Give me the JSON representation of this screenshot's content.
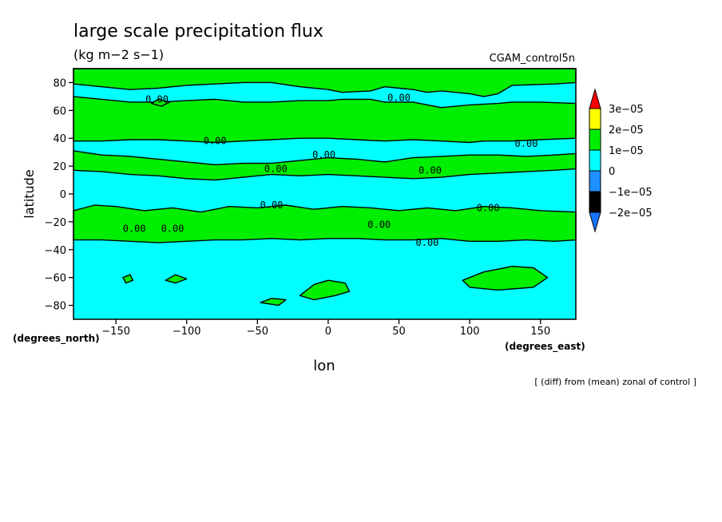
{
  "chart_data": {
    "type": "contour",
    "title": "large scale precipitation flux",
    "units": "(kg m−2 s−1)",
    "dataset": "CGAM_control5n",
    "xlabel": "lon",
    "ylabel": "latitude",
    "x_units": "(degrees_east)",
    "y_units": "(degrees_north)",
    "xlim": [
      -180,
      175
    ],
    "ylim": [
      -90,
      90
    ],
    "x_ticks": [
      {
        "v": -150,
        "label": "−150"
      },
      {
        "v": -100,
        "label": "−100"
      },
      {
        "v": -50,
        "label": "−50"
      },
      {
        "v": 0,
        "label": "0"
      },
      {
        "v": 50,
        "label": "50"
      },
      {
        "v": 100,
        "label": "100"
      },
      {
        "v": 150,
        "label": "150"
      }
    ],
    "y_ticks": [
      {
        "v": 80,
        "label": "80"
      },
      {
        "v": 60,
        "label": "60"
      },
      {
        "v": 40,
        "label": "40"
      },
      {
        "v": 20,
        "label": "20"
      },
      {
        "v": 0,
        "label": "0"
      },
      {
        "v": -20,
        "label": "−20"
      },
      {
        "v": -40,
        "label": "−40"
      },
      {
        "v": -60,
        "label": "−60"
      },
      {
        "v": -80,
        "label": "−80"
      }
    ],
    "colorbar": [
      {
        "label": "3e−05",
        "color": "#ff9900"
      },
      {
        "label": "2e−05",
        "color": "#ffff00"
      },
      {
        "label": "1e−05",
        "color": "#00ee00"
      },
      {
        "label": "0",
        "color": "#00ffff"
      },
      {
        "label": "−1e−05",
        "color": "#1e90ff"
      },
      {
        "label": "−2e−05",
        "color": ""
      }
    ],
    "colorbar_over_color": "#ff0000",
    "colorbar_under_color": "#1874ff",
    "background_color": "#00ffff",
    "positive_color": "#00ee00",
    "contour_labels": [
      {
        "lon": -121,
        "lat": 68,
        "label": "0.00"
      },
      {
        "lon": 50,
        "lat": 69,
        "label": "0.00"
      },
      {
        "lon": -80,
        "lat": 38,
        "label": "0.00"
      },
      {
        "lon": -3,
        "lat": 28,
        "label": "0.00"
      },
      {
        "lon": 140,
        "lat": 36,
        "label": "0.00"
      },
      {
        "lon": -37,
        "lat": 18,
        "label": "0.00"
      },
      {
        "lon": 72,
        "lat": 17,
        "label": "0.00"
      },
      {
        "lon": -40,
        "lat": -8,
        "label": "0.00"
      },
      {
        "lon": 113,
        "lat": -10,
        "label": "0.00"
      },
      {
        "lon": 36,
        "lat": -22,
        "label": "0.00"
      },
      {
        "lon": -137,
        "lat": -25,
        "label": "0.00"
      },
      {
        "lon": -110,
        "lat": -25,
        "label": "0.00"
      },
      {
        "lon": 70,
        "lat": -35,
        "label": "0.00"
      }
    ],
    "regions": [
      [
        [
          -180,
          90
        ],
        [
          175,
          90
        ],
        [
          175,
          80
        ],
        [
          160,
          79
        ],
        [
          130,
          78
        ],
        [
          120,
          72
        ],
        [
          110,
          70
        ],
        [
          100,
          72
        ],
        [
          80,
          74
        ],
        [
          70,
          73
        ],
        [
          60,
          75
        ],
        [
          40,
          77
        ],
        [
          30,
          74
        ],
        [
          10,
          73
        ],
        [
          0,
          75
        ],
        [
          -20,
          77
        ],
        [
          -40,
          80
        ],
        [
          -60,
          80
        ],
        [
          -80,
          79
        ],
        [
          -100,
          78
        ],
        [
          -120,
          76
        ],
        [
          -140,
          75
        ],
        [
          -160,
          77
        ],
        [
          -180,
          79
        ]
      ],
      [
        [
          -180,
          70
        ],
        [
          -160,
          68
        ],
        [
          -140,
          66
        ],
        [
          -120,
          66
        ],
        [
          -100,
          67
        ],
        [
          -80,
          68
        ],
        [
          -60,
          66
        ],
        [
          -40,
          66
        ],
        [
          -20,
          67
        ],
        [
          0,
          67
        ],
        [
          10,
          68
        ],
        [
          30,
          68
        ],
        [
          40,
          66
        ],
        [
          60,
          66
        ],
        [
          70,
          64
        ],
        [
          80,
          62
        ],
        [
          100,
          64
        ],
        [
          120,
          65
        ],
        [
          130,
          66
        ],
        [
          150,
          66
        ],
        [
          175,
          65
        ],
        [
          175,
          40
        ],
        [
          150,
          39
        ],
        [
          130,
          38
        ],
        [
          110,
          38
        ],
        [
          100,
          37
        ],
        [
          80,
          38
        ],
        [
          60,
          39
        ],
        [
          40,
          38
        ],
        [
          20,
          39
        ],
        [
          0,
          40
        ],
        [
          -20,
          40
        ],
        [
          -40,
          39
        ],
        [
          -60,
          38
        ],
        [
          -80,
          37
        ],
        [
          -100,
          38
        ],
        [
          -120,
          39
        ],
        [
          -140,
          39
        ],
        [
          -160,
          38
        ],
        [
          -180,
          38
        ]
      ],
      [
        [
          -180,
          31
        ],
        [
          -160,
          28
        ],
        [
          -140,
          27
        ],
        [
          -120,
          25
        ],
        [
          -100,
          23
        ],
        [
          -80,
          21
        ],
        [
          -60,
          22
        ],
        [
          -40,
          22
        ],
        [
          -20,
          24
        ],
        [
          0,
          26
        ],
        [
          20,
          25
        ],
        [
          40,
          23
        ],
        [
          60,
          26
        ],
        [
          80,
          27
        ],
        [
          100,
          28
        ],
        [
          120,
          28
        ],
        [
          140,
          27
        ],
        [
          160,
          28
        ],
        [
          175,
          29
        ],
        [
          175,
          18
        ],
        [
          160,
          17
        ],
        [
          140,
          16
        ],
        [
          120,
          15
        ],
        [
          100,
          14
        ],
        [
          80,
          12
        ],
        [
          60,
          11
        ],
        [
          40,
          12
        ],
        [
          20,
          13
        ],
        [
          0,
          14
        ],
        [
          -20,
          13
        ],
        [
          -40,
          14
        ],
        [
          -60,
          12
        ],
        [
          -80,
          10
        ],
        [
          -100,
          11
        ],
        [
          -120,
          13
        ],
        [
          -140,
          14
        ],
        [
          -160,
          16
        ],
        [
          -180,
          17
        ]
      ],
      [
        [
          -180,
          -12
        ],
        [
          -165,
          -8
        ],
        [
          -150,
          -9
        ],
        [
          -130,
          -12
        ],
        [
          -110,
          -10
        ],
        [
          -90,
          -13
        ],
        [
          -70,
          -9
        ],
        [
          -50,
          -10
        ],
        [
          -30,
          -8
        ],
        [
          -10,
          -11
        ],
        [
          10,
          -9
        ],
        [
          30,
          -10
        ],
        [
          50,
          -12
        ],
        [
          70,
          -10
        ],
        [
          90,
          -12
        ],
        [
          110,
          -9
        ],
        [
          130,
          -10
        ],
        [
          150,
          -12
        ],
        [
          175,
          -13
        ],
        [
          175,
          -33
        ],
        [
          160,
          -34
        ],
        [
          140,
          -33
        ],
        [
          120,
          -34
        ],
        [
          100,
          -34
        ],
        [
          80,
          -32
        ],
        [
          60,
          -33
        ],
        [
          40,
          -33
        ],
        [
          20,
          -32
        ],
        [
          0,
          -32
        ],
        [
          -20,
          -33
        ],
        [
          -40,
          -32
        ],
        [
          -60,
          -33
        ],
        [
          -80,
          -33
        ],
        [
          -100,
          -34
        ],
        [
          -120,
          -35
        ],
        [
          -140,
          -34
        ],
        [
          -160,
          -33
        ],
        [
          -180,
          -33
        ]
      ],
      [
        [
          95,
          -62
        ],
        [
          110,
          -56
        ],
        [
          130,
          -52
        ],
        [
          145,
          -53
        ],
        [
          155,
          -60
        ],
        [
          145,
          -67
        ],
        [
          120,
          -69
        ],
        [
          100,
          -67
        ]
      ],
      [
        [
          -20,
          -73
        ],
        [
          -10,
          -65
        ],
        [
          0,
          -62
        ],
        [
          12,
          -64
        ],
        [
          15,
          -70
        ],
        [
          5,
          -73
        ],
        [
          -10,
          -76
        ]
      ],
      [
        [
          -48,
          -78
        ],
        [
          -40,
          -75
        ],
        [
          -30,
          -76
        ],
        [
          -35,
          -80
        ]
      ],
      [
        [
          -145,
          -60
        ],
        [
          -140,
          -58
        ],
        [
          -138,
          -62
        ],
        [
          -143,
          -64
        ]
      ],
      [
        [
          -115,
          -62
        ],
        [
          -108,
          -58
        ],
        [
          -100,
          -61
        ],
        [
          -108,
          -64
        ]
      ],
      [
        [
          -125,
          65
        ],
        [
          -118,
          63
        ],
        [
          -112,
          66
        ],
        [
          -120,
          68
        ]
      ]
    ]
  },
  "footer_note": "[ (diff) from (mean) zonal of control ]"
}
